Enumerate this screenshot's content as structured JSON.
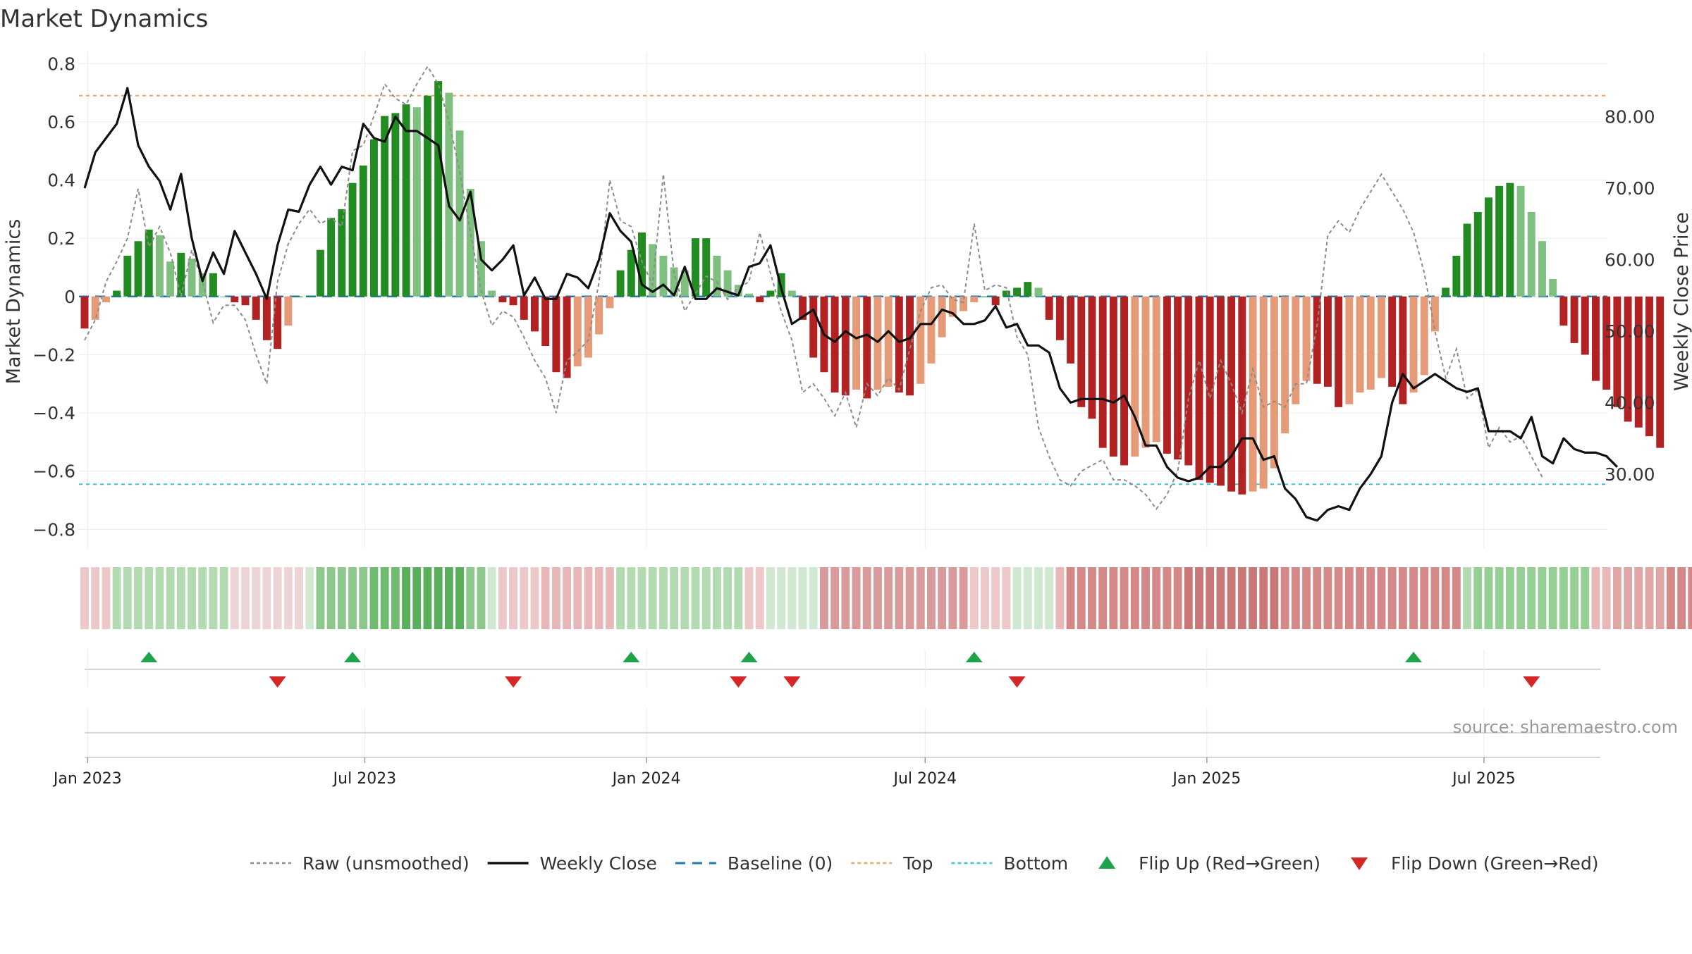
{
  "chart_data": {
    "type": "bar",
    "title": "Market Dynamics",
    "ylabel_left": "Market Dynamics",
    "ylabel_right": "Weekly Close Price",
    "ylim_left": [
      -0.85,
      0.82
    ],
    "ylim_right": [
      20.23,
      88.24
    ],
    "left_ticks": [
      "0.8",
      "0.6",
      "0.4",
      "0.2",
      "0",
      "−0.2",
      "−0.4",
      "−0.6",
      "−0.8"
    ],
    "left_tick_values": [
      0.8,
      0.6,
      0.4,
      0.2,
      0,
      -0.2,
      -0.4,
      -0.6,
      -0.8
    ],
    "right_ticks": [
      "80.00",
      "70.00",
      "60.00",
      "50.00",
      "40.00",
      "30.00"
    ],
    "right_tick_values": [
      80,
      70,
      60,
      50,
      40,
      30
    ],
    "x_ticks": [
      {
        "label": "Jan 2023",
        "date": "2023-01-01"
      },
      {
        "label": "Jul 2023",
        "date": "2023-07-01"
      },
      {
        "label": "Jan 2024",
        "date": "2024-01-01"
      },
      {
        "label": "Jul 2024",
        "date": "2024-07-01"
      },
      {
        "label": "Jan 2025",
        "date": "2025-01-01"
      },
      {
        "label": "Jul 2025",
        "date": "2025-07-01"
      }
    ],
    "x_range": [
      "2022-12-30",
      "2025-09-15"
    ],
    "top_level": 0.69,
    "bottom_level": -0.645,
    "baseline": 0,
    "first_week": "2022-12-30",
    "momentum": [
      -0.11,
      -0.08,
      -0.02,
      0.02,
      0.14,
      0.19,
      0.23,
      0.21,
      0.12,
      0.15,
      0.13,
      0.08,
      0.08,
      0,
      -0.02,
      -0.03,
      -0.08,
      -0.15,
      -0.18,
      -0.1,
      0,
      0,
      0.16,
      0.27,
      0.3,
      0.39,
      0.45,
      0.54,
      0.62,
      0.63,
      0.66,
      0.65,
      0.69,
      0.74,
      0.7,
      0.57,
      0.37,
      0.19,
      0.02,
      -0.02,
      -0.03,
      -0.08,
      -0.12,
      -0.17,
      -0.26,
      -0.28,
      -0.24,
      -0.21,
      -0.13,
      -0.04,
      0.09,
      0.16,
      0.22,
      0.18,
      0.14,
      0.1,
      0.09,
      0.2,
      0.2,
      0.14,
      0.09,
      0.04,
      0.01,
      -0.02,
      0.02,
      0.08,
      0.02,
      -0.08,
      -0.21,
      -0.26,
      -0.33,
      -0.34,
      -0.32,
      -0.35,
      -0.32,
      -0.31,
      -0.33,
      -0.34,
      -0.3,
      -0.23,
      -0.14,
      -0.07,
      -0.05,
      -0.02,
      0,
      -0.03,
      0.02,
      0.03,
      0.05,
      0.03,
      -0.08,
      -0.15,
      -0.23,
      -0.38,
      -0.42,
      -0.52,
      -0.55,
      -0.58,
      -0.55,
      -0.52,
      -0.5,
      -0.54,
      -0.56,
      -0.58,
      -0.63,
      -0.64,
      -0.65,
      -0.67,
      -0.68,
      -0.67,
      -0.66,
      -0.59,
      -0.47,
      -0.37,
      -0.29,
      -0.3,
      -0.31,
      -0.38,
      -0.37,
      -0.33,
      -0.32,
      -0.28,
      -0.31,
      -0.37,
      -0.33,
      -0.27,
      -0.12,
      0.03,
      0.14,
      0.25,
      0.29,
      0.34,
      0.38,
      0.39,
      0.38,
      0.29,
      0.19,
      0.06,
      -0.1,
      -0.16,
      -0.2,
      -0.29,
      -0.32,
      -0.38,
      -0.43,
      -0.45,
      -0.48,
      -0.52
    ],
    "raw_unsmoothed": [
      -0.15,
      -0.08,
      0.05,
      0.12,
      0.2,
      0.37,
      0.17,
      0.24,
      0.15,
      0,
      0.16,
      0.05,
      -0.09,
      -0.03,
      -0.03,
      -0.08,
      -0.2,
      -0.3,
      0.05,
      0.18,
      0.25,
      0.3,
      0.25,
      0.27,
      0.24,
      0.5,
      0.52,
      0.62,
      0.73,
      0.68,
      0.66,
      0.73,
      0.79,
      0.73,
      0.6,
      0.43,
      0.22,
      0.02,
      -0.1,
      -0.05,
      -0.07,
      -0.14,
      -0.22,
      -0.28,
      -0.4,
      -0.22,
      -0.19,
      -0.15,
      0.05,
      0.4,
      0.26,
      0.24,
      0.12,
      0.04,
      0.42,
      0.08,
      -0.05,
      0.01,
      0.07,
      0.05,
      -0.01,
      0.03,
      0.05,
      0.22,
      0.08,
      -0.05,
      -0.15,
      -0.33,
      -0.3,
      -0.35,
      -0.41,
      -0.33,
      -0.45,
      -0.3,
      -0.34,
      -0.28,
      -0.32,
      -0.18,
      -0.05,
      0.03,
      0.04,
      -0.01,
      -0.02,
      0.25,
      0.02,
      0.04,
      0.03,
      -0.14,
      -0.2,
      -0.45,
      -0.55,
      -0.63,
      -0.65,
      -0.6,
      -0.58,
      -0.56,
      -0.63,
      -0.63,
      -0.65,
      -0.68,
      -0.73,
      -0.68,
      -0.6,
      -0.35,
      -0.22,
      -0.35,
      -0.22,
      -0.3,
      -0.4,
      -0.25,
      -0.38,
      -0.36,
      -0.38,
      -0.3,
      -0.3,
      -0.1,
      0.21,
      0.26,
      0.22,
      0.3,
      0.36,
      0.42,
      0.36,
      0.3,
      0.22,
      0.08,
      -0.12,
      -0.28,
      -0.18,
      -0.35,
      -0.32,
      -0.52,
      -0.45,
      -0.5,
      -0.48,
      -0.55,
      -0.62
    ],
    "weekly_close": [
      70,
      75,
      77,
      79,
      84,
      76,
      73,
      71,
      67,
      72,
      63,
      57,
      61,
      58,
      64,
      61,
      58,
      54.5,
      62,
      67,
      66.7,
      70.5,
      73,
      70.5,
      73,
      72.5,
      79,
      77,
      76.5,
      80,
      78,
      78,
      77,
      76,
      67.5,
      65.5,
      69.5,
      60,
      58.5,
      60,
      62,
      55,
      57.5,
      54.5,
      54.5,
      58,
      57.5,
      56,
      60,
      66.5,
      64,
      62.5,
      56.5,
      55.5,
      56.5,
      55,
      59,
      54.5,
      54.5,
      56,
      55.5,
      55,
      59,
      59.5,
      62,
      56,
      51,
      52,
      53,
      49.5,
      48.5,
      50,
      49,
      49.5,
      48.5,
      50,
      48.5,
      49,
      51,
      51,
      53,
      52.5,
      51,
      51,
      51.5,
      53.5,
      50.5,
      51,
      48,
      48,
      47,
      42,
      40,
      40.5,
      40.5,
      40.5,
      40,
      41,
      38,
      34,
      34,
      31,
      29.5,
      29,
      29.5,
      31,
      31,
      32.5,
      35,
      35,
      32,
      32.5,
      28,
      26.5,
      24,
      23.5,
      25,
      25.5,
      25,
      28,
      30,
      32.5,
      40,
      44,
      42,
      43,
      44,
      43,
      42,
      41.5,
      42,
      36,
      36,
      36,
      35,
      38,
      32.5,
      31.5,
      35,
      33.5,
      33,
      33,
      32.5,
      31
    ],
    "palette": {
      "strong_green": "#228b22",
      "light_green": "#7fbf7f",
      "strong_red": "#b22222",
      "light_red": "#e59a78",
      "close_line": "#111111",
      "raw_line": "#8c8c8c",
      "baseline": "#1f77b4",
      "top": "#e6a76a",
      "bottom": "#38c4d6",
      "flip_up": "#1fa34a",
      "flip_down": "#d62728"
    },
    "regime_strip_colors": [
      "#ecc8c8",
      "#ecc8c8",
      "#ecc8c8",
      "#b2dbb2",
      "#b2dbb2",
      "#b2dbb2",
      "#b2dbb2",
      "#b2dbb2",
      "#b2dbb2",
      "#b2dbb2",
      "#b2dbb2",
      "#b2dbb2",
      "#b2dbb2",
      "#b2dbb2",
      "#ecd4d4",
      "#ecd4d4",
      "#ecd4d4",
      "#ecd4d4",
      "#ecd4d4",
      "#ecd4d4",
      "#ecd4d4",
      "#cfe8cf",
      "#8dc98d",
      "#8dc98d",
      "#8dc98d",
      "#8dc98d",
      "#8dc98d",
      "#6fbc6f",
      "#6fbc6f",
      "#6fbc6f",
      "#5ab05a",
      "#5ab05a",
      "#5ab05a",
      "#5ab05a",
      "#5ab05a",
      "#5ab05a",
      "#8dc98d",
      "#8dc98d",
      "#cfe8cf",
      "#ecc8c8",
      "#ecc8c8",
      "#ecc8c8",
      "#ecc8c8",
      "#e8b8b8",
      "#e8b8b8",
      "#e8b8b8",
      "#e8b8b8",
      "#e8b8b8",
      "#e8b8b8",
      "#e8b8b8",
      "#b2dbb2",
      "#b2dbb2",
      "#b2dbb2",
      "#b2dbb2",
      "#b2dbb2",
      "#b2dbb2",
      "#b2dbb2",
      "#b2dbb2",
      "#b2dbb2",
      "#b2dbb2",
      "#b2dbb2",
      "#b2dbb2",
      "#ecc8c8",
      "#ecc8c8",
      "#cfe8cf",
      "#cfe8cf",
      "#cfe8cf",
      "#cfe8cf",
      "#cfe8cf",
      "#d89a9a",
      "#d89a9a",
      "#d89a9a",
      "#d89a9a",
      "#d89a9a",
      "#d89a9a",
      "#d89a9a",
      "#d89a9a",
      "#d89a9a",
      "#d89a9a",
      "#d89a9a",
      "#d89a9a",
      "#d89a9a",
      "#d89a9a",
      "#ecc8c8",
      "#ecc8c8",
      "#ecc8c8",
      "#ecc8c8",
      "#cfe8cf",
      "#cfe8cf",
      "#cfe8cf",
      "#cfe8cf",
      "#e8b8b8",
      "#d48888",
      "#d48888",
      "#d48888",
      "#d48888",
      "#d48888",
      "#d48888",
      "#d48888",
      "#d48888",
      "#d48888",
      "#d48888",
      "#d48888",
      "#cc7777",
      "#cc7777",
      "#cc7777",
      "#cc7777",
      "#cc7777",
      "#cc7777",
      "#cc7777",
      "#cc7777",
      "#cc7777",
      "#d48888",
      "#d48888",
      "#d48888",
      "#d48888",
      "#d48888",
      "#d48888",
      "#d48888",
      "#d48888",
      "#d48888",
      "#d48888",
      "#d48888",
      "#d48888",
      "#d48888",
      "#d48888",
      "#d48888",
      "#d48888",
      "#d48888",
      "#b2dbb2",
      "#94cf94",
      "#94cf94",
      "#94cf94",
      "#94cf94",
      "#94cf94",
      "#94cf94",
      "#94cf94",
      "#94cf94",
      "#94cf94",
      "#94cf94",
      "#94cf94",
      "#e8b8b8",
      "#e8b8b8",
      "#e0a5a5",
      "#e0a5a5",
      "#e0a5a5",
      "#e0a5a5",
      "#e0a5a5",
      "#d48888",
      "#d48888",
      "#d48888",
      "#d48888"
    ],
    "flip_up_dates": [
      "2023-02-10",
      "2023-06-23",
      "2023-12-22",
      "2024-03-08",
      "2024-08-02",
      "2025-05-16"
    ],
    "flip_down_dates": [
      "2023-05-05",
      "2023-10-06",
      "2024-03-01",
      "2024-04-05",
      "2024-08-30",
      "2025-08-01"
    ],
    "legend": [
      {
        "label": "Raw (unsmoothed)",
        "kind": "dotted-line",
        "color": "#8c8c8c"
      },
      {
        "label": "Weekly Close",
        "kind": "solid-line",
        "color": "#111111"
      },
      {
        "label": "Baseline (0)",
        "kind": "dashed-line",
        "color": "#1f77b4"
      },
      {
        "label": "Top",
        "kind": "dotted-line",
        "color": "#e6a76a"
      },
      {
        "label": "Bottom",
        "kind": "dotted-line",
        "color": "#38c4d6"
      },
      {
        "label": "Flip Up (Red→Green)",
        "kind": "triangle-up",
        "color": "#1fa34a"
      },
      {
        "label": "Flip Down (Green→Red)",
        "kind": "triangle-down",
        "color": "#d62728"
      }
    ],
    "legend_placement": "bottom-center",
    "grid": true,
    "source": "source: sharemaestro.com"
  }
}
